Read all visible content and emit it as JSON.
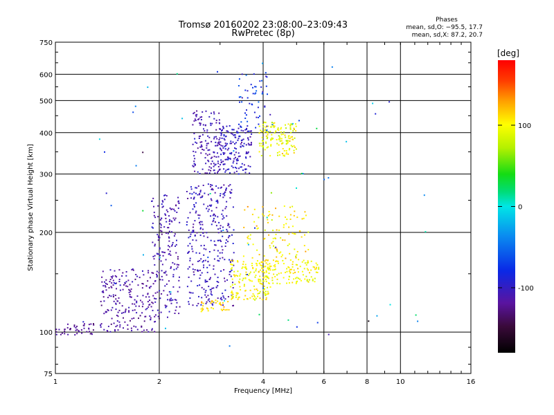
{
  "chart_data": {
    "type": "scatter",
    "title": "Tromsø 20160202 23:08:00–23:09:43",
    "subtitle": "RwPretec (8p)",
    "xlabel": "Frequency [MHz]",
    "ylabel": "Stationary phase Virtual Height [km]",
    "x_scale": "log",
    "y_scale": "log",
    "xlim": [
      1,
      16
    ],
    "ylim": [
      75,
      750
    ],
    "x_ticks": [
      1,
      2,
      4,
      6,
      8,
      10,
      16
    ],
    "x_tick_labels": [
      "1",
      "2",
      "4",
      "6",
      "8",
      "10",
      "16"
    ],
    "y_ticks": [
      75,
      100,
      200,
      300,
      400,
      500,
      600,
      750
    ],
    "y_tick_labels": [
      "75",
      "100",
      "200",
      "300",
      "400",
      "500",
      "600",
      "750"
    ],
    "grid": true,
    "phase_stats": {
      "heading": "Phases",
      "line_o": "mean, sd,O: −95.5, 17.7",
      "line_x": "mean, sd,X:  87.2, 20.7"
    },
    "colorbar": {
      "label": "[deg]",
      "range": [
        -180,
        180
      ],
      "ticks": [
        100,
        0,
        -100
      ],
      "tick_labels": [
        "100",
        "0",
        "-100"
      ],
      "colormap": "rainbow"
    },
    "clusters": [
      {
        "name": "",
        "phase": -120,
        "spread": 12,
        "n": 45,
        "x": [
          1.0,
          1.3
        ],
        "y": [
          98,
          106
        ]
      },
      {
        "name": "",
        "phase": -115,
        "spread": 15,
        "n": 220,
        "x": [
          1.35,
          2.0
        ],
        "y": [
          100,
          155
        ]
      },
      {
        "name": "",
        "phase": -110,
        "spread": 15,
        "n": 180,
        "x": [
          1.9,
          2.3
        ],
        "y": [
          110,
          260
        ]
      },
      {
        "name": "",
        "phase": -105,
        "spread": 18,
        "n": 320,
        "x": [
          2.4,
          3.3
        ],
        "y": [
          120,
          280
        ]
      },
      {
        "name": "",
        "phase": -110,
        "spread": 15,
        "n": 140,
        "x": [
          2.5,
          3.0
        ],
        "y": [
          300,
          470
        ]
      },
      {
        "name": "",
        "phase": -100,
        "spread": 18,
        "n": 170,
        "x": [
          3.0,
          3.7
        ],
        "y": [
          300,
          420
        ]
      },
      {
        "name": "",
        "phase": -80,
        "spread": 30,
        "n": 60,
        "x": [
          3.4,
          4.2
        ],
        "y": [
          400,
          620
        ]
      },
      {
        "name": "",
        "phase": 95,
        "spread": 25,
        "n": 140,
        "x": [
          3.9,
          5.0
        ],
        "y": [
          340,
          430
        ]
      },
      {
        "name": "",
        "phase": 100,
        "spread": 20,
        "n": 170,
        "x": [
          3.2,
          4.2
        ],
        "y": [
          125,
          165
        ]
      },
      {
        "name": "",
        "phase": 100,
        "spread": 20,
        "n": 110,
        "x": [
          4.0,
          5.8
        ],
        "y": [
          140,
          165
        ]
      },
      {
        "name": "",
        "phase": 105,
        "spread": 25,
        "n": 110,
        "x": [
          3.5,
          5.5
        ],
        "y": [
          160,
          240
        ]
      },
      {
        "name": "",
        "phase": 110,
        "spread": 20,
        "n": 35,
        "x": [
          2.6,
          3.2
        ],
        "y": [
          115,
          125
        ]
      },
      {
        "name": "",
        "phase": -50,
        "spread": 90,
        "n": 60,
        "x": [
          1.2,
          12.0
        ],
        "y": [
          80,
          650
        ]
      }
    ]
  }
}
